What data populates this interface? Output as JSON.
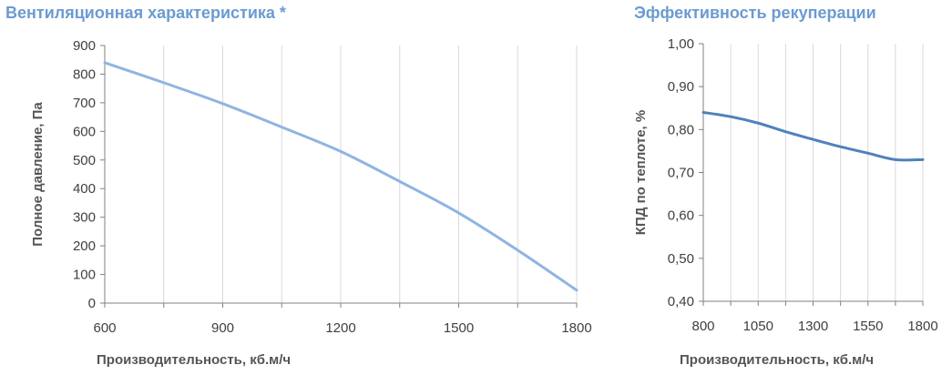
{
  "titles": {
    "left": "Вентиляционная характеристика *",
    "right": "Эффективность рекуперации"
  },
  "chart_data": [
    {
      "type": "line",
      "title": "Вентиляционная характеристика *",
      "xlabel": "Производительность, кб.м/ч",
      "ylabel": "Полное  давление, Па",
      "xlim": [
        600,
        1800
      ],
      "ylim": [
        0,
        900
      ],
      "x_ticks": [
        600,
        900,
        1200,
        1500,
        1800
      ],
      "x_tick_labels": [
        "600",
        "900",
        "1200",
        "1500",
        "1800"
      ],
      "y_ticks": [
        0,
        100,
        200,
        300,
        400,
        500,
        600,
        700,
        800,
        900
      ],
      "y_tick_labels": [
        "0",
        "100",
        "200",
        "300",
        "400",
        "500",
        "600",
        "700",
        "800",
        "900"
      ],
      "grid": "vertical",
      "color": "#8fb4e3",
      "series": [
        {
          "x": [
            600,
            750,
            900,
            1050,
            1200,
            1350,
            1500,
            1650,
            1800
          ],
          "values": [
            840,
            770,
            697,
            615,
            530,
            425,
            315,
            185,
            45
          ]
        }
      ]
    },
    {
      "type": "line",
      "title": "Эффективность рекуперации",
      "xlabel": "Производительность, кб.м/ч",
      "ylabel": "КПД по теплоте, %",
      "xlim": [
        800,
        1800
      ],
      "ylim": [
        0.4,
        1.0
      ],
      "x_ticks": [
        800,
        1050,
        1300,
        1550,
        1800
      ],
      "x_tick_labels": [
        "800",
        "1050",
        "1300",
        "1550",
        "1800"
      ],
      "y_ticks": [
        0.4,
        0.5,
        0.6,
        0.7,
        0.8,
        0.9,
        1.0
      ],
      "y_tick_labels": [
        "0,40",
        "0,50",
        "0,60",
        "0,70",
        "0,80",
        "0,90",
        "1,00"
      ],
      "grid": "vertical",
      "color": "#4f81bd",
      "series": [
        {
          "x": [
            800,
            925,
            1050,
            1175,
            1300,
            1425,
            1550,
            1675,
            1800
          ],
          "values": [
            0.84,
            0.83,
            0.815,
            0.795,
            0.777,
            0.76,
            0.745,
            0.73,
            0.73
          ]
        }
      ]
    }
  ]
}
